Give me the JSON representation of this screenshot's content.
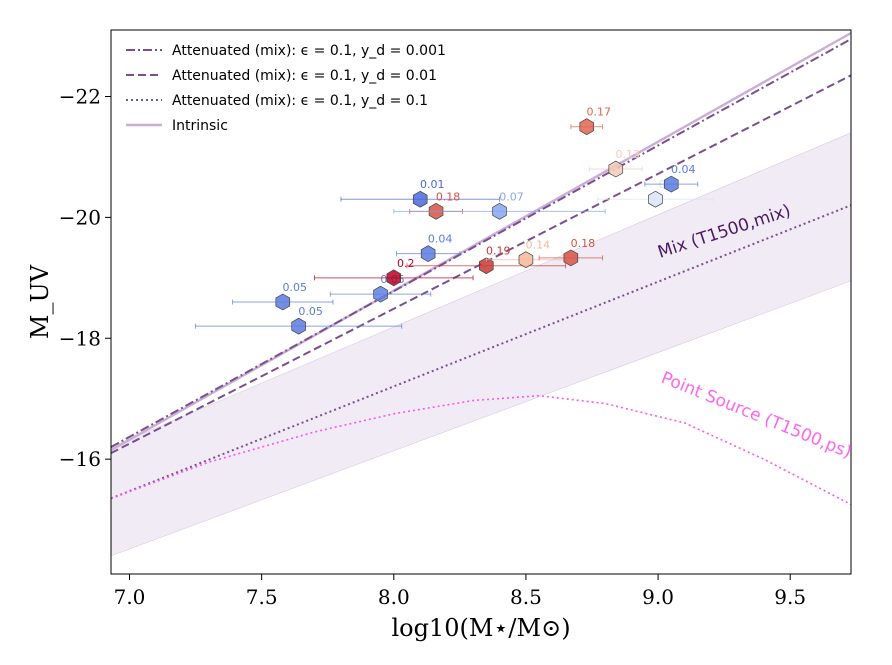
{
  "chart_data": {
    "type": "scatter",
    "title": "",
    "xlabel": "log10(M⋆/M⊙)",
    "ylabel": "M_UV",
    "xlim": [
      6.93,
      9.73
    ],
    "ylim": [
      -14.1,
      -23.1
    ],
    "y_inverted": true,
    "x_ticks": [
      7.0,
      7.5,
      8.0,
      8.5,
      9.0,
      9.5
    ],
    "x_tick_labels": [
      "7.0",
      "7.5",
      "8.0",
      "8.5",
      "9.0",
      "9.5"
    ],
    "y_ticks": [
      -16,
      -18,
      -20,
      -22
    ],
    "y_tick_labels": [
      "−16",
      "−18",
      "−20",
      "−22"
    ],
    "grid": false,
    "legend_position": "top-left",
    "legend": [
      {
        "label": "Attenuated (mix): ϵ = 0.1, y_d = 0.001",
        "style": "dashdot",
        "color": "#7a4f8e"
      },
      {
        "label": "Attenuated (mix): ϵ = 0.1, y_d = 0.01",
        "style": "dashed",
        "color": "#7a4f8e"
      },
      {
        "label": "Attenuated (mix): ϵ = 0.1, y_d = 0.1",
        "style": "dotted",
        "color": "#7a4f8e"
      },
      {
        "label": "Intrinsic",
        "style": "solid",
        "color": "#c9aed6"
      }
    ],
    "series": [
      {
        "name": "Intrinsic",
        "style": "solid",
        "color": "#c9aed6",
        "x": [
          6.93,
          9.73
        ],
        "y": [
          -16.15,
          -23.05
        ]
      },
      {
        "name": "Attenuated (mix): ϵ = 0.1, y_d = 0.001",
        "style": "dashdot",
        "color": "#7a4f8e",
        "x": [
          6.93,
          9.73
        ],
        "y": [
          -16.2,
          -22.95
        ]
      },
      {
        "name": "Attenuated (mix): ϵ = 0.1, y_d = 0.01",
        "style": "dashed",
        "color": "#7a4f8e",
        "x": [
          6.93,
          9.73
        ],
        "y": [
          -16.1,
          -22.35
        ]
      },
      {
        "name": "Attenuated (mix): ϵ = 0.1, y_d = 0.1",
        "style": "dotted",
        "color": "#7a4f8e",
        "x": [
          6.93,
          9.73
        ],
        "y": [
          -15.35,
          -20.2
        ]
      },
      {
        "name": "Point Source",
        "style": "dotted",
        "color": "#ff55ee",
        "x": [
          6.93,
          7.3,
          7.7,
          8.0,
          8.3,
          8.55,
          8.8,
          9.1,
          9.4,
          9.73
        ],
        "y": [
          -15.35,
          -15.95,
          -16.45,
          -16.75,
          -16.97,
          -17.05,
          -16.92,
          -16.6,
          -16.0,
          -15.25
        ]
      }
    ],
    "band": {
      "name": "Mix shaded region",
      "color": "#eae3f0",
      "x": [
        6.93,
        9.73
      ],
      "y_upper": [
        -16.2,
        -21.4
      ],
      "y_lower": [
        -14.4,
        -18.95
      ]
    },
    "points": [
      {
        "x": 7.58,
        "y": -18.6,
        "xerr": 0.19,
        "label": "0.05",
        "color": "#5b7be0"
      },
      {
        "x": 7.64,
        "y": -18.2,
        "xerr": 0.39,
        "label": "0.05",
        "color": "#5b7be0"
      },
      {
        "x": 7.95,
        "y": -18.73,
        "xerr": 0.19,
        "label": "0.05",
        "color": "#5f80e2"
      },
      {
        "x": 8.0,
        "y": -19.0,
        "xerr": 0.3,
        "label": "0.2",
        "color": "#b40426"
      },
      {
        "x": 8.1,
        "y": -20.3,
        "xerr": 0.3,
        "label": "0.01",
        "color": "#4a6ad8"
      },
      {
        "x": 8.13,
        "y": -19.4,
        "xerr": 0.12,
        "label": "0.04",
        "color": "#5b7be0"
      },
      {
        "x": 8.16,
        "y": -20.1,
        "xerr": 0.1,
        "label": "0.18",
        "color": "#d65244"
      },
      {
        "x": 8.35,
        "y": -19.2,
        "xerr": 0.3,
        "label": "0.19",
        "color": "#c83836"
      },
      {
        "x": 8.4,
        "y": -20.1,
        "xerr": 0.4,
        "label": "0.07",
        "color": "#85a6f2"
      },
      {
        "x": 8.5,
        "y": -19.3,
        "xerr": 0.15,
        "label": "0.14",
        "color": "#f5b89b"
      },
      {
        "x": 8.67,
        "y": -19.33,
        "xerr": 0.12,
        "label": "0.18",
        "color": "#d65244"
      },
      {
        "x": 8.73,
        "y": -21.5,
        "xerr": 0.06,
        "label": "0.17",
        "color": "#e0654f"
      },
      {
        "x": 8.84,
        "y": -20.8,
        "xerr": 0.1,
        "label": "0.13",
        "color": "#f2cbb7"
      },
      {
        "x": 8.99,
        "y": -20.3,
        "xerr": 0.22,
        "label": "0.1",
        "color": "#dbe4f8"
      },
      {
        "x": 9.05,
        "y": -20.55,
        "xerr": 0.1,
        "label": "0.04",
        "color": "#5b7be0"
      }
    ],
    "annotations": [
      {
        "text": "Mix (T1500,mix)",
        "color": "#4b1a63"
      },
      {
        "text": "Point Source (T1500,ps)",
        "color": "#ff66ee"
      }
    ]
  }
}
